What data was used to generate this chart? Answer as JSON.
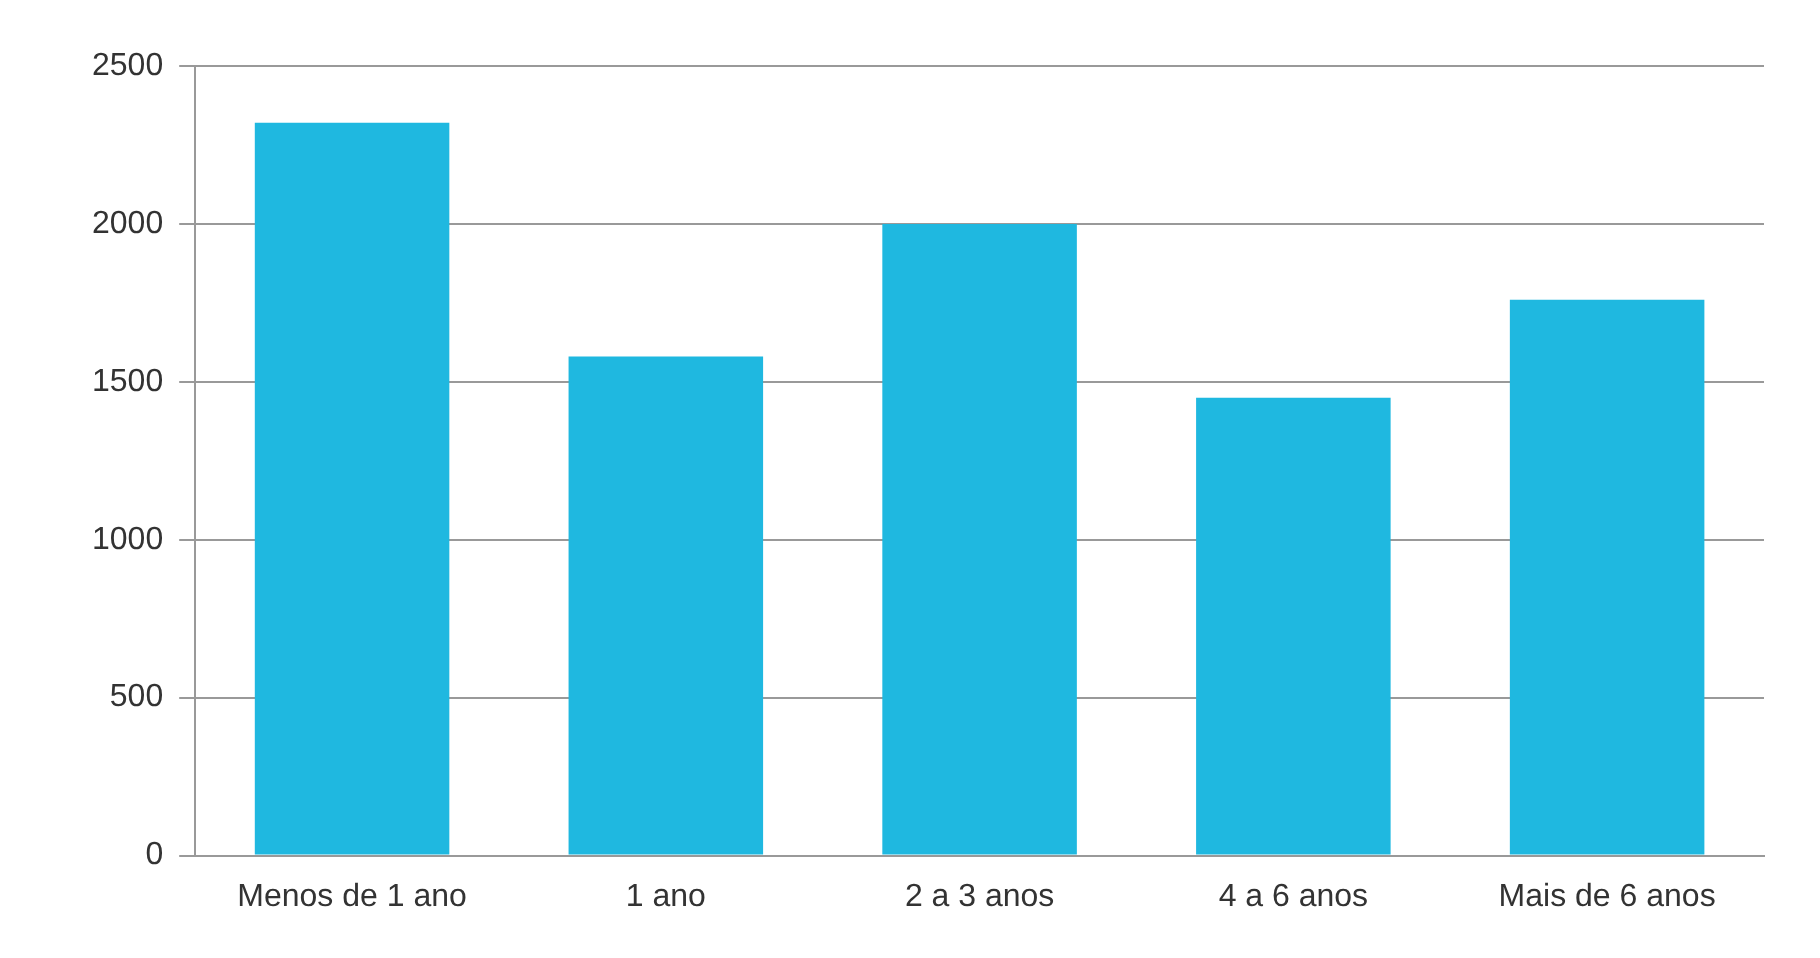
{
  "chart_data": {
    "type": "bar",
    "categories": [
      "Menos de 1 ano",
      "1 ano",
      "2 a 3 anos",
      "4 a 6 anos",
      "Mais de 6 anos"
    ],
    "values": [
      2320,
      1580,
      2000,
      1450,
      1760
    ],
    "color": "#1fb8e0",
    "ylim": [
      0,
      2500
    ],
    "yticks": [
      0,
      500,
      1000,
      1500,
      2000,
      2500
    ],
    "grid": "y",
    "legend": false
  }
}
